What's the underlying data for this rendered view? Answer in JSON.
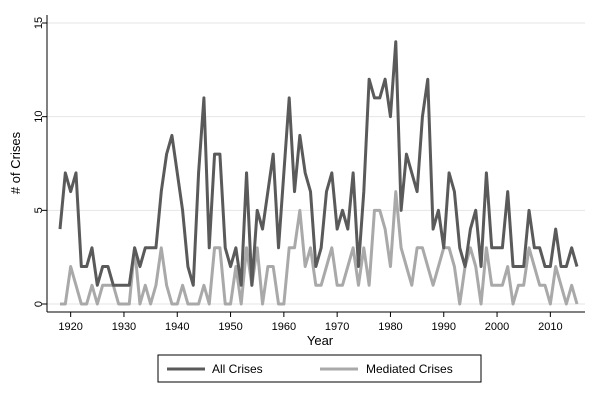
{
  "chart_data": {
    "type": "line",
    "title": "",
    "xlabel": "Year",
    "ylabel": "# of Crises",
    "xlim": [
      1918,
      2015
    ],
    "ylim": [
      0,
      15
    ],
    "x_ticks": [
      1920,
      1930,
      1940,
      1950,
      1960,
      1970,
      1980,
      1990,
      2000,
      2010
    ],
    "y_ticks": [
      0,
      5,
      10,
      15
    ],
    "grid": true,
    "legend_position": "bottom",
    "x": [
      1918,
      1919,
      1920,
      1921,
      1922,
      1923,
      1924,
      1925,
      1926,
      1927,
      1928,
      1929,
      1930,
      1931,
      1932,
      1933,
      1934,
      1935,
      1936,
      1937,
      1938,
      1939,
      1940,
      1941,
      1942,
      1943,
      1944,
      1945,
      1946,
      1947,
      1948,
      1949,
      1950,
      1951,
      1952,
      1953,
      1954,
      1955,
      1956,
      1957,
      1958,
      1959,
      1960,
      1961,
      1962,
      1963,
      1964,
      1965,
      1966,
      1967,
      1968,
      1969,
      1970,
      1971,
      1972,
      1973,
      1974,
      1975,
      1976,
      1977,
      1978,
      1979,
      1980,
      1981,
      1982,
      1983,
      1984,
      1985,
      1986,
      1987,
      1988,
      1989,
      1990,
      1991,
      1992,
      1993,
      1994,
      1995,
      1996,
      1997,
      1998,
      1999,
      2000,
      2001,
      2002,
      2003,
      2004,
      2005,
      2006,
      2007,
      2008,
      2009,
      2010,
      2011,
      2012,
      2013,
      2014,
      2015
    ],
    "series": [
      {
        "name": "All Crises",
        "color": "#5a5a5a",
        "values": [
          4,
          7,
          6,
          7,
          2,
          2,
          3,
          1,
          2,
          2,
          1,
          1,
          1,
          1,
          3,
          2,
          3,
          3,
          3,
          6,
          8,
          9,
          7,
          5,
          2,
          1,
          7,
          11,
          3,
          8,
          8,
          3,
          2,
          3,
          1,
          7,
          1,
          5,
          4,
          6,
          8,
          3,
          7,
          11,
          6,
          9,
          7,
          6,
          2,
          3,
          6,
          7,
          4,
          5,
          4,
          7,
          2,
          6,
          12,
          11,
          11,
          12,
          10,
          14,
          5,
          8,
          7,
          6,
          10,
          12,
          4,
          5,
          3,
          7,
          6,
          3,
          2,
          4,
          5,
          2,
          7,
          3,
          3,
          3,
          6,
          2,
          2,
          2,
          5,
          3,
          3,
          2,
          2,
          4,
          2,
          2,
          3,
          2
        ]
      },
      {
        "name": "Mediated Crises",
        "color": "#a9a9a9",
        "values": [
          0,
          0,
          2,
          1,
          0,
          0,
          1,
          0,
          1,
          1,
          1,
          0,
          0,
          0,
          3,
          0,
          1,
          0,
          1,
          3,
          1,
          0,
          0,
          1,
          0,
          0,
          0,
          1,
          0,
          3,
          3,
          0,
          0,
          2,
          0,
          3,
          1,
          3,
          0,
          2,
          2,
          0,
          0,
          3,
          3,
          5,
          2,
          3,
          1,
          1,
          2,
          3,
          1,
          1,
          2,
          3,
          1,
          3,
          1,
          5,
          5,
          4,
          2,
          6,
          3,
          2,
          1,
          3,
          3,
          2,
          1,
          2,
          3,
          3,
          2,
          0,
          2,
          3,
          2,
          0,
          3,
          1,
          1,
          1,
          2,
          0,
          1,
          1,
          3,
          2,
          1,
          1,
          0,
          2,
          1,
          0,
          1,
          0
        ]
      }
    ]
  }
}
